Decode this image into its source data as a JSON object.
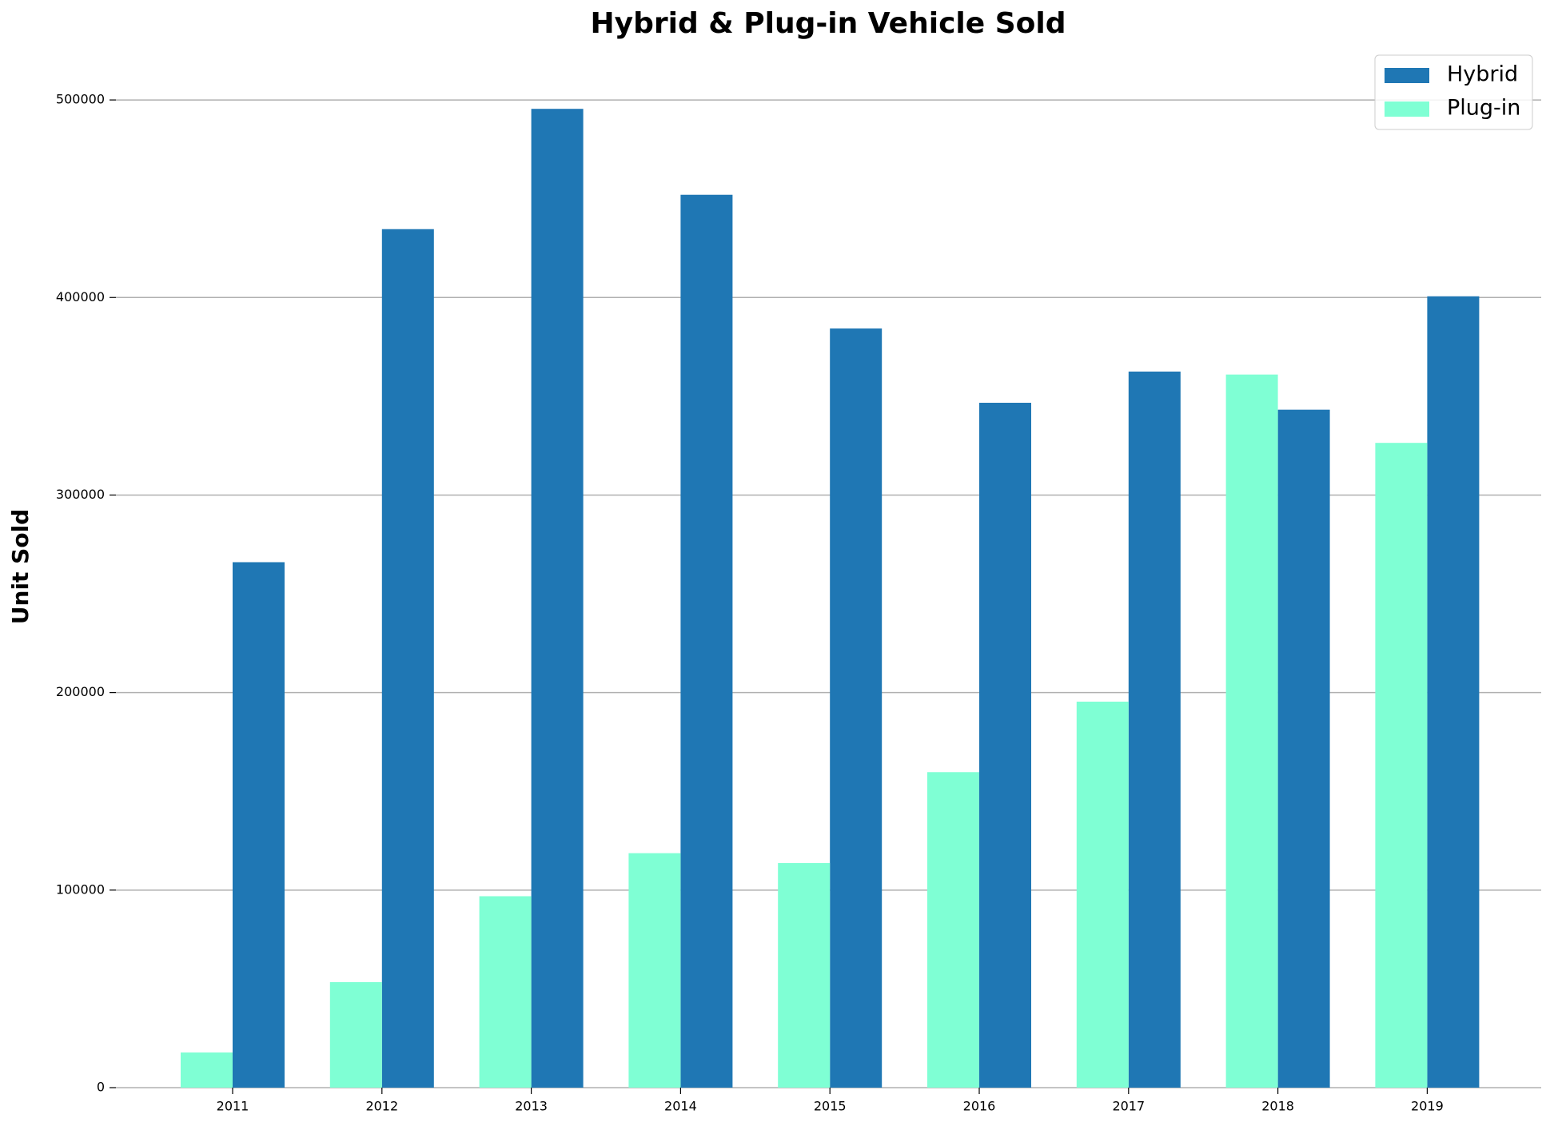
{
  "chart_data": {
    "type": "bar",
    "title": "Hybrid & Plug-in Vehicle Sold",
    "y_label": "Unit Sold",
    "categories": [
      "2011",
      "2012",
      "2013",
      "2014",
      "2015",
      "2016",
      "2017",
      "2018",
      "2019"
    ],
    "series": [
      {
        "name": "Hybrid",
        "color": "#1f77b4",
        "values": [
          266000,
          434600,
          495500,
          452000,
          384300,
          346700,
          362500,
          343200,
          400600
        ]
      },
      {
        "name": "Plug-in",
        "color": "#7fffd4",
        "values": [
          17800,
          53400,
          96900,
          118700,
          113700,
          159700,
          195400,
          361000,
          326400
        ]
      }
    ],
    "ylim": [
      0,
      515000
    ],
    "yticks": [
      0,
      100000,
      200000,
      300000,
      400000,
      500000
    ],
    "grid": true,
    "legend": "upper right"
  }
}
